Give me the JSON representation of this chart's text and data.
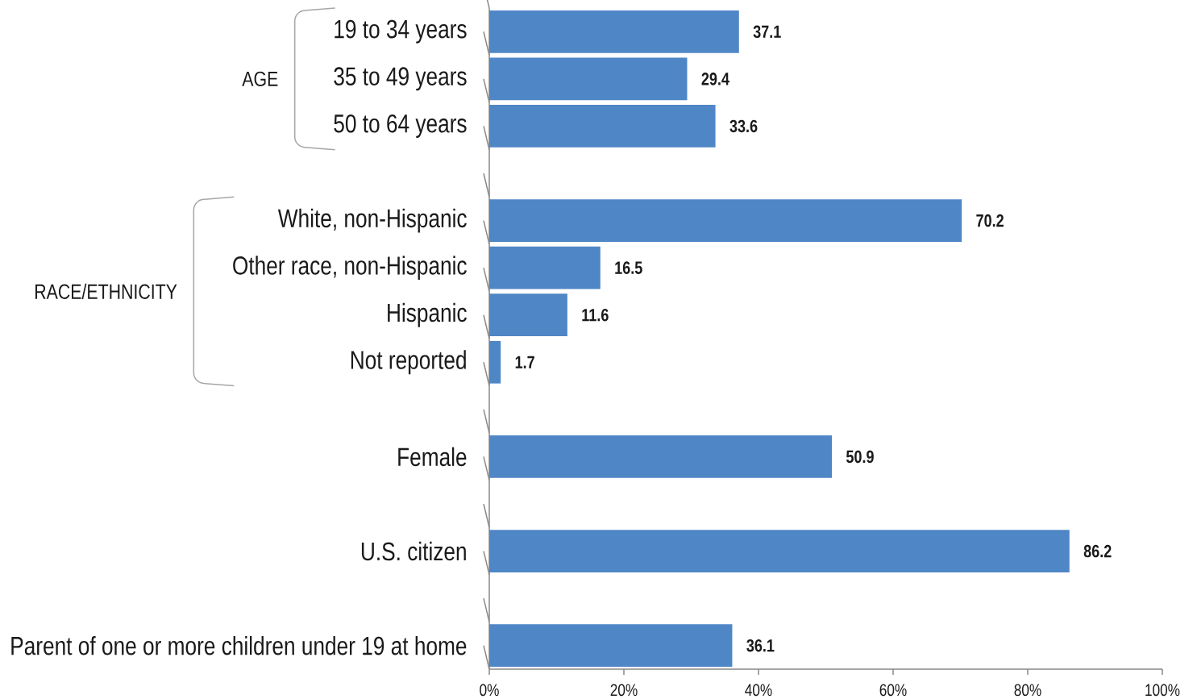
{
  "chart_data": {
    "type": "bar",
    "orientation": "horizontal",
    "categories": [
      "19 to 34 years",
      "35 to 49 years",
      "50 to 64 years",
      null,
      "White, non-Hispanic",
      "Other race, non-Hispanic",
      "Hispanic",
      "Not reported",
      null,
      "Female",
      null,
      "U.S. citizen",
      null,
      "Parent of one or more children under 19 at home"
    ],
    "values": [
      37.1,
      29.4,
      33.6,
      null,
      70.2,
      16.5,
      11.6,
      1.7,
      null,
      50.9,
      null,
      86.2,
      null,
      36.1
    ],
    "color": "#4f86c6",
    "xlim": [
      0,
      100
    ],
    "xticks": [
      {
        "value": 0,
        "label": "0%"
      },
      {
        "value": 20,
        "label": "20%"
      },
      {
        "value": 40,
        "label": "40%"
      },
      {
        "value": 60,
        "label": "60%"
      },
      {
        "value": 80,
        "label": "80%"
      },
      {
        "value": 100,
        "label": "100%"
      }
    ],
    "data_labels": true,
    "annotations": [
      "AGE",
      "RACE/ETHNICITY"
    ]
  }
}
